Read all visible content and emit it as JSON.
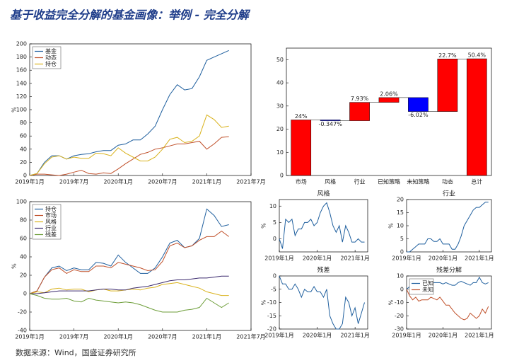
{
  "title": "基于收益完全分解的基金画像：举例 - 完全分解",
  "source": "数据来源：Wind，国盛证券研究所",
  "chart_data": [
    {
      "type": "line",
      "ylabel": "%",
      "legend": "upper left",
      "grid": false,
      "x": [
        "2019-01",
        "2019-02",
        "2019-03",
        "2019-04",
        "2019-05",
        "2019-06",
        "2019-07",
        "2019-08",
        "2019-09",
        "2019-10",
        "2019-11",
        "2019-12",
        "2020-01",
        "2020-02",
        "2020-03",
        "2020-04",
        "2020-05",
        "2020-06",
        "2020-07",
        "2020-08",
        "2020-09",
        "2020-10",
        "2020-11",
        "2020-12",
        "2021-01",
        "2021-02",
        "2021-03",
        "2021-04"
      ],
      "xlim": [
        "2019-01",
        "2021-07"
      ],
      "xticks": [
        {
          "value": "2019-01",
          "label": "2019年1月"
        },
        {
          "value": "2019-07",
          "label": "2019年7月"
        },
        {
          "value": "2020-01",
          "label": "2020年1月"
        },
        {
          "value": "2020-07",
          "label": "2020年7月"
        },
        {
          "value": "2021-01",
          "label": "2021年1月"
        },
        {
          "value": "2021-07",
          "label": "2021年7月"
        }
      ],
      "ylim": [
        0,
        200
      ],
      "yticks": [
        0,
        20,
        40,
        60,
        80,
        100,
        120,
        140,
        160,
        180,
        200
      ],
      "series": [
        {
          "name": "基金",
          "color": "#1f5f9e",
          "values": [
            0,
            3,
            20,
            30,
            30,
            25,
            30,
            32,
            33,
            36,
            38,
            38,
            46,
            48,
            54,
            54,
            63,
            75,
            100,
            123,
            138,
            130,
            132,
            150,
            175,
            180,
            185,
            190
          ]
        },
        {
          "name": "动态",
          "color": "#c0502a",
          "values": [
            0,
            2,
            2,
            1,
            0,
            2,
            5,
            8,
            3,
            2,
            4,
            3,
            10,
            18,
            25,
            32,
            35,
            40,
            42,
            45,
            48,
            48,
            50,
            52,
            40,
            48,
            58,
            59
          ]
        },
        {
          "name": "持仓",
          "color": "#d9b21c",
          "values": [
            0,
            3,
            18,
            28,
            30,
            25,
            28,
            26,
            26,
            34,
            33,
            30,
            42,
            34,
            28,
            22,
            22,
            28,
            40,
            55,
            58,
            50,
            52,
            60,
            92,
            85,
            73,
            75
          ]
        }
      ]
    },
    {
      "type": "waterfall",
      "categories": [
        "市场",
        "风格",
        "行业",
        "已知策略",
        "未知策略",
        "动态",
        "总计"
      ],
      "values": [
        24,
        -0.347,
        7.93,
        2.06,
        -6.02,
        22.7,
        50.4
      ],
      "value_labels": [
        "24%",
        "-0.347%",
        "7.93%",
        "2.06%",
        "-6.02%",
        "22.7%",
        "50.4%"
      ],
      "positive_color": "#ff0000",
      "negative_color": "#0000ff",
      "ylim": [
        0,
        55
      ],
      "yticks": [
        0,
        10,
        20,
        30,
        40,
        50
      ]
    },
    {
      "type": "line",
      "ylabel": "%",
      "legend": "upper left",
      "x": [
        "2019-01",
        "2019-02",
        "2019-03",
        "2019-04",
        "2019-05",
        "2019-06",
        "2019-07",
        "2019-08",
        "2019-09",
        "2019-10",
        "2019-11",
        "2019-12",
        "2020-01",
        "2020-02",
        "2020-03",
        "2020-04",
        "2020-05",
        "2020-06",
        "2020-07",
        "2020-08",
        "2020-09",
        "2020-10",
        "2020-11",
        "2020-12",
        "2021-01",
        "2021-02",
        "2021-03",
        "2021-04"
      ],
      "xlim": [
        "2019-01",
        "2021-07"
      ],
      "xticks": [
        {
          "value": "2019-01",
          "label": "2019年1月"
        },
        {
          "value": "2019-07",
          "label": "2019年7月"
        },
        {
          "value": "2020-01",
          "label": "2020年1月"
        },
        {
          "value": "2020-07",
          "label": "2020年7月"
        },
        {
          "value": "2021-01",
          "label": "2021年1月"
        },
        {
          "value": "2021-07",
          "label": "2021年7月"
        }
      ],
      "ylim": [
        -40,
        100
      ],
      "yticks": [
        -40,
        -20,
        0,
        20,
        40,
        60,
        80,
        100
      ],
      "series": [
        {
          "name": "持仓",
          "color": "#1f5f9e",
          "values": [
            0,
            3,
            18,
            28,
            30,
            25,
            28,
            26,
            26,
            34,
            33,
            30,
            42,
            34,
            28,
            22,
            22,
            28,
            40,
            55,
            58,
            50,
            52,
            60,
            92,
            85,
            73,
            75
          ]
        },
        {
          "name": "市场",
          "color": "#c0502a",
          "values": [
            0,
            3,
            18,
            26,
            28,
            22,
            26,
            24,
            24,
            30,
            30,
            28,
            34,
            32,
            30,
            28,
            25,
            26,
            35,
            52,
            55,
            50,
            52,
            58,
            62,
            62,
            68,
            62
          ]
        },
        {
          "name": "风格",
          "color": "#d9b21c",
          "values": [
            0,
            2,
            1,
            5,
            6,
            4,
            5,
            5,
            2,
            4,
            5,
            3,
            3,
            4,
            5,
            4,
            6,
            7,
            10,
            11,
            12,
            10,
            8,
            6,
            2,
            0,
            -2,
            -2
          ]
        },
        {
          "name": "行业",
          "color": "#3b2a6e",
          "values": [
            0,
            0,
            1,
            2,
            3,
            3,
            3,
            3,
            3,
            4,
            5,
            5,
            4,
            4,
            6,
            7,
            8,
            10,
            12,
            14,
            15,
            15,
            16,
            17,
            17,
            18,
            19,
            19
          ]
        },
        {
          "name": "残差",
          "color": "#6e9e3a",
          "values": [
            0,
            -2,
            -5,
            -6,
            -6,
            -5,
            -8,
            -9,
            -5,
            -7,
            -8,
            -9,
            -10,
            -9,
            -10,
            -12,
            -15,
            -18,
            -20,
            -20,
            -20,
            -18,
            -17,
            -15,
            -5,
            -10,
            -15,
            -10
          ]
        }
      ]
    },
    {
      "type": "line",
      "title": "风格",
      "ylabel": "%",
      "x": [
        "2019-01",
        "2019-02",
        "2019-03",
        "2019-04",
        "2019-05",
        "2019-06",
        "2019-07",
        "2019-08",
        "2019-09",
        "2019-10",
        "2019-11",
        "2019-12",
        "2020-01",
        "2020-02",
        "2020-03",
        "2020-04",
        "2020-05",
        "2020-06",
        "2020-07",
        "2020-08",
        "2020-09",
        "2020-10",
        "2020-11",
        "2020-12",
        "2021-01",
        "2021-02",
        "2021-03",
        "2021-04"
      ],
      "xlim": [
        "2019-01",
        "2021-05"
      ],
      "xticks": [
        {
          "value": "2019-01",
          "label": "2019年1月"
        },
        {
          "value": "2020-01",
          "label": "2020年1月"
        },
        {
          "value": "2021-01",
          "label": "2021年1月"
        }
      ],
      "ylim": [
        -4,
        12
      ],
      "yticks": [
        0,
        5,
        10
      ],
      "series": [
        {
          "name": "风格",
          "color": "#1f5f9e",
          "values": [
            0,
            -3,
            6,
            5,
            6,
            1,
            3,
            3,
            5,
            5,
            6,
            4,
            5,
            8,
            10,
            11,
            8,
            4,
            2,
            4,
            -1,
            4,
            2,
            -1,
            -1,
            0,
            -1,
            -1
          ]
        }
      ]
    },
    {
      "type": "line",
      "title": "行业",
      "ylabel": "%",
      "x": [
        "2019-01",
        "2019-02",
        "2019-03",
        "2019-04",
        "2019-05",
        "2019-06",
        "2019-07",
        "2019-08",
        "2019-09",
        "2019-10",
        "2019-11",
        "2019-12",
        "2020-01",
        "2020-02",
        "2020-03",
        "2020-04",
        "2020-05",
        "2020-06",
        "2020-07",
        "2020-08",
        "2020-09",
        "2020-10",
        "2020-11",
        "2020-12",
        "2021-01",
        "2021-02",
        "2021-03",
        "2021-04"
      ],
      "xlim": [
        "2019-01",
        "2021-05"
      ],
      "xticks": [
        {
          "value": "2019-01",
          "label": "2019年1月"
        },
        {
          "value": "2020-01",
          "label": "2020年1月"
        },
        {
          "value": "2021-01",
          "label": "2021年1月"
        }
      ],
      "ylim": [
        0,
        20
      ],
      "yticks": [
        0,
        5,
        10,
        15,
        20
      ],
      "series": [
        {
          "name": "行业",
          "color": "#1f5f9e",
          "values": [
            0,
            0,
            1,
            2,
            3,
            3,
            3,
            5,
            5,
            4,
            4,
            5,
            3,
            3,
            3,
            1,
            1,
            3,
            6,
            10,
            12,
            14,
            16,
            17,
            17,
            18,
            19,
            19
          ]
        }
      ]
    },
    {
      "type": "line",
      "title": "残差",
      "ylabel": "%",
      "x": [
        "2019-01",
        "2019-02",
        "2019-03",
        "2019-04",
        "2019-05",
        "2019-06",
        "2019-07",
        "2019-08",
        "2019-09",
        "2019-10",
        "2019-11",
        "2019-12",
        "2020-01",
        "2020-02",
        "2020-03",
        "2020-04",
        "2020-05",
        "2020-06",
        "2020-07",
        "2020-08",
        "2020-09",
        "2020-10",
        "2020-11",
        "2020-12",
        "2021-01",
        "2021-02",
        "2021-03",
        "2021-04"
      ],
      "xlim": [
        "2019-01",
        "2021-05"
      ],
      "xticks": [
        {
          "value": "2019-01",
          "label": "2019年1月"
        },
        {
          "value": "2020-01",
          "label": "2020年1月"
        },
        {
          "value": "2021-01",
          "label": "2021年1月"
        }
      ],
      "ylim": [
        -20,
        0
      ],
      "yticks": [
        -20,
        -15,
        -10,
        -5,
        0
      ],
      "series": [
        {
          "name": "残差",
          "color": "#1f5f9e",
          "values": [
            0,
            -3,
            -3,
            -5,
            -5,
            -3,
            -5,
            -8,
            -5,
            -6,
            -6,
            -4,
            -6,
            -6,
            -8,
            -5,
            -15,
            -18,
            -20,
            -20,
            -18,
            -8,
            -10,
            -15,
            -12,
            -18,
            -14,
            -10
          ]
        }
      ]
    },
    {
      "type": "line",
      "title": "残差分解",
      "ylabel": "%",
      "legend": "upper left",
      "x": [
        "2019-01",
        "2019-02",
        "2019-03",
        "2019-04",
        "2019-05",
        "2019-06",
        "2019-07",
        "2019-08",
        "2019-09",
        "2019-10",
        "2019-11",
        "2019-12",
        "2020-01",
        "2020-02",
        "2020-03",
        "2020-04",
        "2020-05",
        "2020-06",
        "2020-07",
        "2020-08",
        "2020-09",
        "2020-10",
        "2020-11",
        "2020-12",
        "2021-01",
        "2021-02",
        "2021-03",
        "2021-04"
      ],
      "xlim": [
        "2019-01",
        "2021-05"
      ],
      "xticks": [
        {
          "value": "2019-01",
          "label": "2019年1月"
        },
        {
          "value": "2020-01",
          "label": "2020年1月"
        },
        {
          "value": "2021-01",
          "label": "2021年1月"
        }
      ],
      "ylim": [
        -30,
        10
      ],
      "yticks": [
        -30,
        -20,
        -10,
        0,
        10
      ],
      "series": [
        {
          "name": "已知",
          "color": "#1f5f9e",
          "values": [
            0,
            2,
            3,
            4,
            4,
            2,
            3,
            3,
            3,
            5,
            5,
            5,
            4,
            5,
            4,
            3,
            3,
            5,
            6,
            5,
            4,
            3,
            5,
            5,
            9,
            5,
            4,
            5
          ]
        },
        {
          "name": "未知",
          "color": "#c0502a",
          "values": [
            0,
            -5,
            -8,
            -6,
            -9,
            -8,
            -8,
            -8,
            -6,
            -7,
            -8,
            -6,
            -9,
            -12,
            -12,
            -15,
            -18,
            -20,
            -22,
            -23,
            -22,
            -18,
            -20,
            -22,
            -20,
            -15,
            -18,
            -13
          ]
        }
      ]
    }
  ]
}
